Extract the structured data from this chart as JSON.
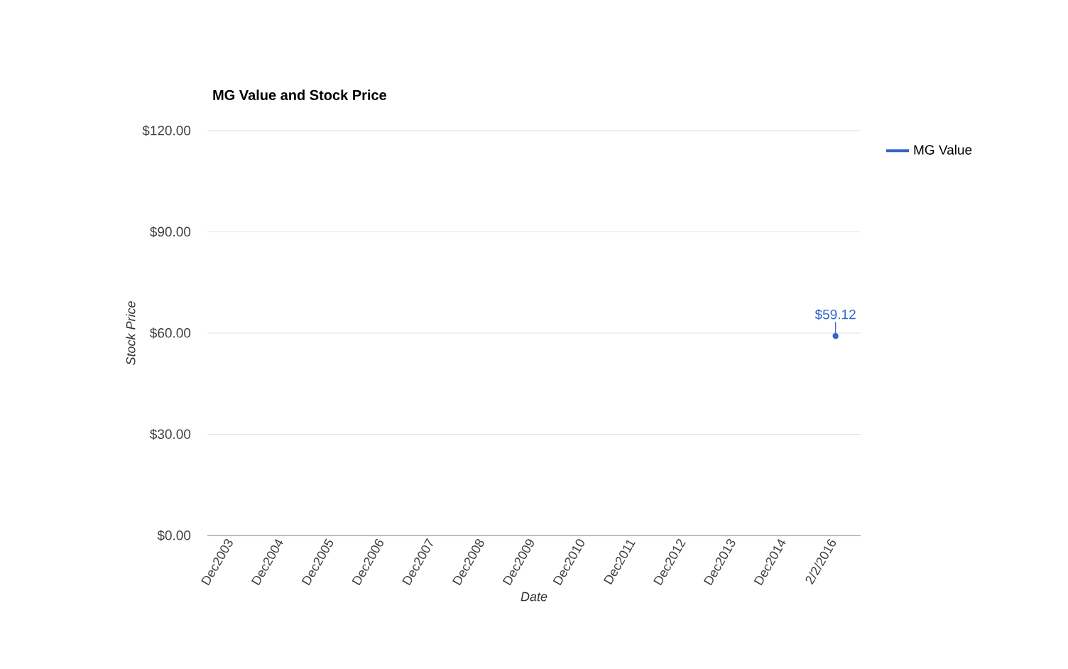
{
  "chart_data": {
    "type": "line",
    "title": "MG Value and Stock Price",
    "xlabel": "Date",
    "ylabel": "Stock Price",
    "categories": [
      "Dec2003",
      "Dec2004",
      "Dec2005",
      "Dec2006",
      "Dec2007",
      "Dec2008",
      "Dec2009",
      "Dec2010",
      "Dec2011",
      "Dec2012",
      "Dec2013",
      "Dec2014",
      "2/2/2016"
    ],
    "series": [
      {
        "name": "MG Value",
        "color": "#3366cc",
        "values": [
          null,
          null,
          null,
          null,
          null,
          null,
          null,
          null,
          null,
          null,
          null,
          null,
          59.12
        ],
        "value_labels": [
          null,
          null,
          null,
          null,
          null,
          null,
          null,
          null,
          null,
          null,
          null,
          null,
          "$59.12"
        ]
      }
    ],
    "ylim": [
      0,
      120
    ],
    "yticks": [
      {
        "value": 0,
        "label": "$0.00"
      },
      {
        "value": 30,
        "label": "$30.00"
      },
      {
        "value": 60,
        "label": "$60.00"
      },
      {
        "value": 90,
        "label": "$90.00"
      },
      {
        "value": 120,
        "label": "$120.00"
      }
    ],
    "grid": "y",
    "legend": "top right",
    "marker": "circle",
    "line_style": "solid"
  }
}
